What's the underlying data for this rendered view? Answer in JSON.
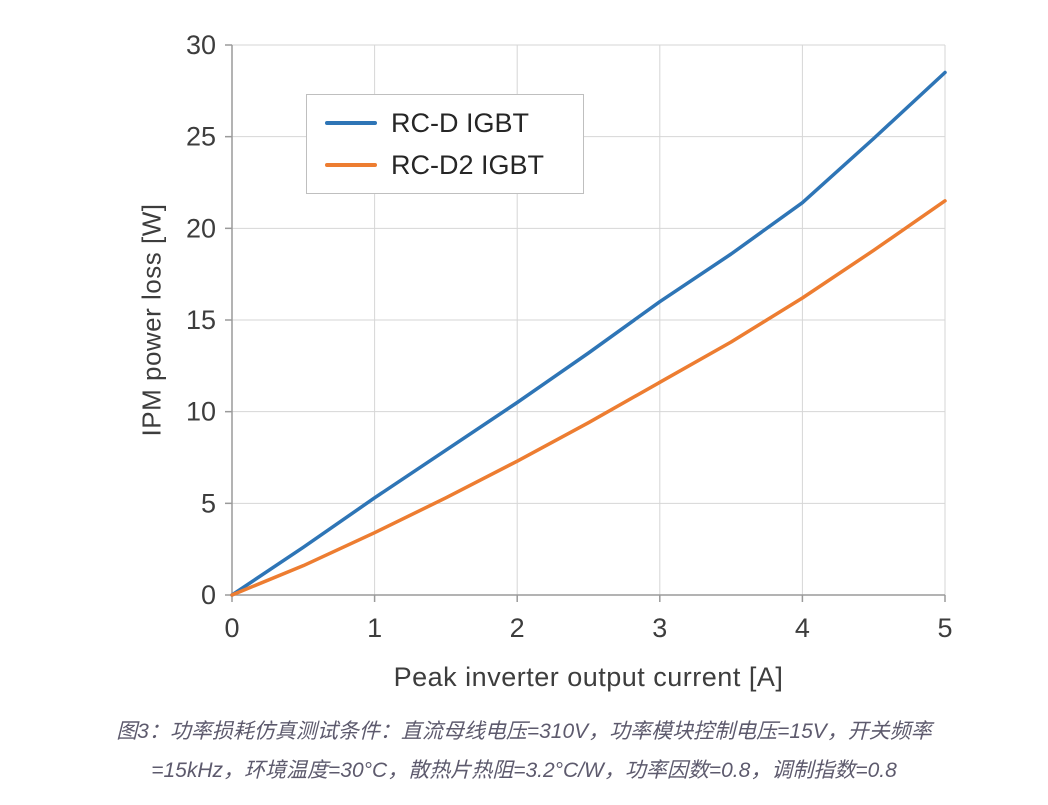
{
  "chart_data": {
    "type": "line",
    "x": [
      0,
      0.5,
      1,
      1.5,
      2,
      2.5,
      3,
      3.5,
      4,
      4.5,
      5
    ],
    "series": [
      {
        "name": "RC-D IGBT",
        "color": "#2e75b6",
        "values": [
          0,
          2.6,
          5.3,
          7.9,
          10.5,
          13.2,
          16.0,
          18.6,
          21.4,
          24.9,
          28.5
        ]
      },
      {
        "name": "RC-D2 IGBT",
        "color": "#ed7d31",
        "values": [
          0,
          1.6,
          3.4,
          5.3,
          7.3,
          9.4,
          11.6,
          13.8,
          16.2,
          18.8,
          21.5
        ]
      }
    ],
    "title": "",
    "xlabel": "Peak inverter output current [A]",
    "ylabel": "IPM power loss [W]",
    "xlim": [
      0,
      5
    ],
    "ylim": [
      0,
      30
    ],
    "x_ticks": [
      0,
      1,
      2,
      3,
      4,
      5
    ],
    "y_ticks": [
      0,
      5,
      10,
      15,
      20,
      25,
      30
    ],
    "grid": true,
    "legend_position": "top-left",
    "grid_color": "#d6d6d6",
    "axis_color": "#9a9a9a"
  },
  "caption": {
    "line1": "图3：功率损耗仿真测试条件：直流母线电压=310V，功率模块控制电压=15V，开关频率",
    "line2": "=15kHz，环境温度=30°C，散热片热阻=3.2°C/W，功率因数=0.8，调制指数=0.8"
  }
}
